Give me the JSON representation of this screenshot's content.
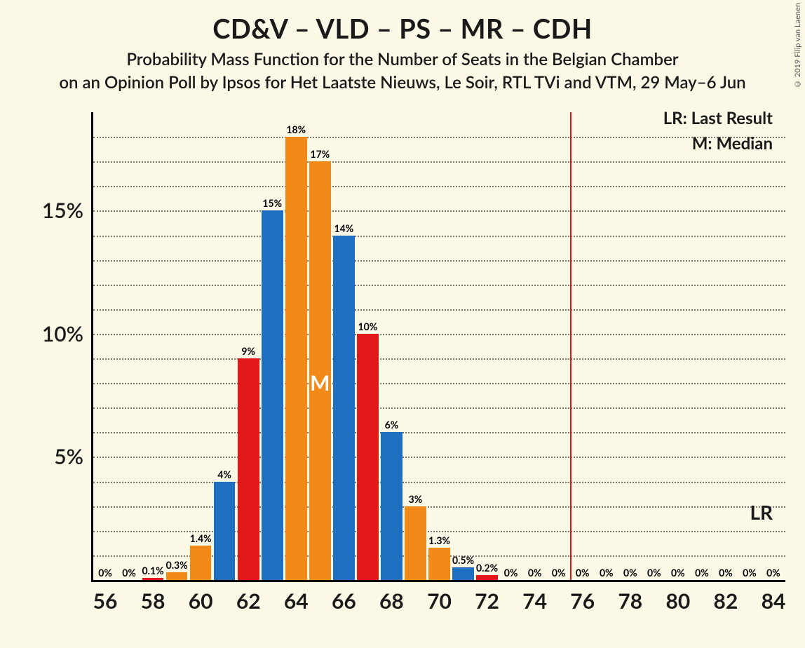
{
  "meta": {
    "title": "CD&V – VLD – PS – MR – CDH",
    "subtitle": "Probability Mass Function for the Number of Seats in the Belgian Chamber",
    "subtitle2": "on an Opinion Poll by Ipsos for Het Laatste Nieuws, Le Soir, RTL TVi and VTM, 29 May–6 Jun",
    "copyright": "© 2019 Filip van Laenen"
  },
  "legend": {
    "lr": "LR: Last Result",
    "m": "M: Median",
    "lr_short": "LR",
    "m_short": "M"
  },
  "chart": {
    "type": "bar",
    "background_color": "#fbf9e6",
    "axis_color": "#000000",
    "grid_color": "#222222",
    "grid_style": "dotted",
    "ymax": 19,
    "ytick_step": 1,
    "ytick_major": [
      5,
      10,
      15
    ],
    "ytick_format_pct": true,
    "x_seats_min": 56,
    "x_seats_max": 84,
    "x_tick_labels": [
      56,
      58,
      60,
      62,
      64,
      66,
      68,
      70,
      72,
      74,
      76,
      78,
      80,
      82,
      84
    ],
    "bar_width_ratio": 0.9,
    "colors": {
      "blue": "#1f6fc0",
      "orange": "#f28a1a",
      "red": "#e31818"
    },
    "lr_seat": 75,
    "median_seat": 65,
    "bars": [
      {
        "seat": 56,
        "pct": 0,
        "label": "0%",
        "color": "blue"
      },
      {
        "seat": 57,
        "pct": 0,
        "label": "0%",
        "color": "orange"
      },
      {
        "seat": 58,
        "pct": 0.1,
        "label": "0.1%",
        "color": "red"
      },
      {
        "seat": 59,
        "pct": 0.3,
        "label": "0.3%",
        "color": "blue",
        "note": "actually orange-tinted small"
      },
      {
        "seat": 60,
        "pct": 1.4,
        "label": "1.4%",
        "color": "orange"
      },
      {
        "seat": 61,
        "pct": 4,
        "label": "4%",
        "color": "blue"
      },
      {
        "seat": 62,
        "pct": 9,
        "label": "9%",
        "color": "red"
      },
      {
        "seat": 63,
        "pct": 15,
        "label": "15%",
        "color": "blue"
      },
      {
        "seat": 64,
        "pct": 18,
        "label": "18%",
        "color": "orange"
      },
      {
        "seat": 65,
        "pct": 17,
        "label": "17%",
        "color": "orange"
      },
      {
        "seat": 66,
        "pct": 14,
        "label": "14%",
        "color": "blue"
      },
      {
        "seat": 67,
        "pct": 10,
        "label": "10%",
        "color": "red"
      },
      {
        "seat": 68,
        "pct": 6,
        "label": "6%",
        "color": "blue"
      },
      {
        "seat": 69,
        "pct": 3,
        "label": "3%",
        "color": "orange"
      },
      {
        "seat": 70,
        "pct": 1.3,
        "label": "1.3%",
        "color": "orange"
      },
      {
        "seat": 71,
        "pct": 0.5,
        "label": "0.5%",
        "color": "blue"
      },
      {
        "seat": 72,
        "pct": 0.2,
        "label": "0.2%",
        "color": "red"
      },
      {
        "seat": 73,
        "pct": 0,
        "label": "0%",
        "color": "blue"
      },
      {
        "seat": 74,
        "pct": 0,
        "label": "0%",
        "color": "orange"
      },
      {
        "seat": 75,
        "pct": 0,
        "label": "0%",
        "color": "red"
      },
      {
        "seat": 76,
        "pct": 0,
        "label": "0%",
        "color": "blue"
      },
      {
        "seat": 77,
        "pct": 0,
        "label": "0%",
        "color": "orange"
      },
      {
        "seat": 78,
        "pct": 0,
        "label": "0%",
        "color": "red"
      },
      {
        "seat": 79,
        "pct": 0,
        "label": "0%",
        "color": "blue"
      },
      {
        "seat": 80,
        "pct": 0,
        "label": "0%",
        "color": "orange"
      },
      {
        "seat": 81,
        "pct": 0,
        "label": "0%",
        "color": "red"
      },
      {
        "seat": 82,
        "pct": 0,
        "label": "0%",
        "color": "blue"
      },
      {
        "seat": 83,
        "pct": 0,
        "label": "0%",
        "color": "orange"
      },
      {
        "seat": 84,
        "pct": 0,
        "label": "0%",
        "color": "red"
      }
    ],
    "bar_color_overrides": {
      "59": "orange"
    }
  }
}
